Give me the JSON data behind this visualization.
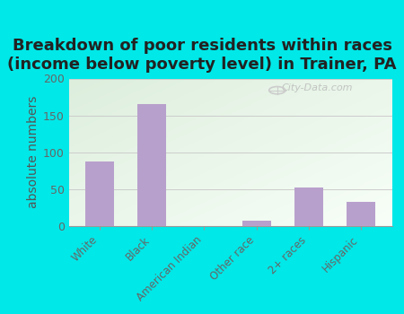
{
  "title": "Breakdown of poor residents within races\n(income below poverty level) in Trainer, PA",
  "categories": [
    "White",
    "Black",
    "American Indian",
    "Other race",
    "2+ races",
    "Hispanic"
  ],
  "values": [
    88,
    165,
    0,
    7,
    52,
    33
  ],
  "bar_color": "#b8a0cc",
  "ylim": [
    0,
    200
  ],
  "yticks": [
    0,
    50,
    100,
    150,
    200
  ],
  "ylabel": "absolute numbers",
  "bg_outer": "#00e8e8",
  "bg_plot_grad_topleft": "#ddeedd",
  "bg_plot_grad_bottomright": "#f5fff5",
  "watermark": "City-Data.com",
  "title_fontsize": 13,
  "ylabel_fontsize": 10,
  "tick_color": "#666666",
  "title_color": "#222222",
  "ylabel_color": "#555555"
}
